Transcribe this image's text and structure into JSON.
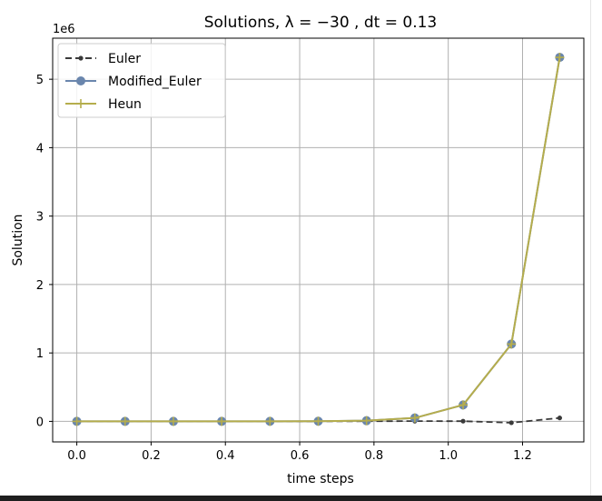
{
  "chart_data": {
    "type": "line",
    "title": "Solutions, λ = −30 , dt = 0.13",
    "xlabel": "time steps",
    "ylabel": "Solution",
    "y_offset_label": "1e6",
    "xlim": [
      -0.065,
      1.365
    ],
    "ylim": [
      -0.3,
      5.6
    ],
    "xticks": [
      0.0,
      0.2,
      0.4,
      0.6,
      0.8,
      1.0,
      1.2
    ],
    "xtick_labels": [
      "0.0",
      "0.2",
      "0.4",
      "0.6",
      "0.8",
      "1.0",
      "1.2"
    ],
    "yticks": [
      0,
      1,
      2,
      3,
      4,
      5
    ],
    "ytick_labels": [
      "0",
      "1",
      "2",
      "3",
      "4",
      "5"
    ],
    "grid": true,
    "legend_position": "top-left",
    "x": [
      0.0,
      0.13,
      0.26,
      0.39,
      0.52,
      0.65,
      0.78,
      0.91,
      1.04,
      1.17,
      1.3
    ],
    "series": [
      {
        "name": "Euler",
        "color": "#3a3a3a",
        "linestyle": "dashed",
        "marker": "dot",
        "values": [
          0,
          0,
          0,
          0,
          0,
          0,
          0.002,
          0.004,
          0.003,
          -0.02,
          0.05
        ]
      },
      {
        "name": "Modified_Euler",
        "color": "#6a86ad",
        "linestyle": "solid",
        "marker": "circle",
        "values": [
          0,
          0,
          0,
          0,
          0.0005,
          0.002,
          0.01,
          0.05,
          0.24,
          1.13,
          5.32
        ]
      },
      {
        "name": "Heun",
        "color": "#b5ad4c",
        "linestyle": "solid",
        "marker": "plus",
        "values": [
          0,
          0,
          0,
          0,
          0.0005,
          0.002,
          0.01,
          0.05,
          0.24,
          1.13,
          5.32
        ]
      }
    ]
  }
}
